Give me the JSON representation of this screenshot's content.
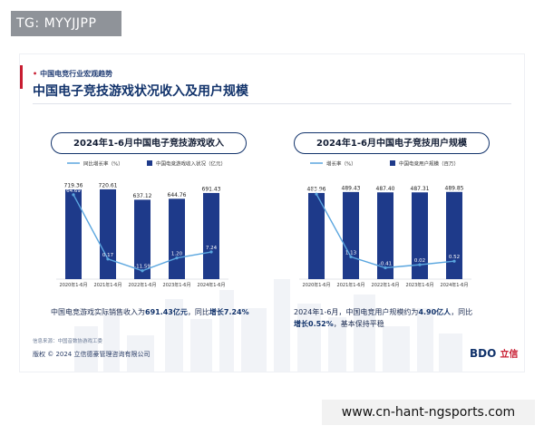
{
  "overlay_tag": "TG: MYYJJPP",
  "watermark_url": "www.cn-hant-ngsports.com",
  "slide": {
    "kicker": "中国电竞行业宏观趋势",
    "title": "中国电子竞技游戏状况收入及用户规模",
    "source": "信息来源：中国音数协游戏工委",
    "copyright": "版权 © 2024 立信德豪管理咨询有限公司",
    "logo_latin": "BDO",
    "logo_cn": "立信"
  },
  "captions": {
    "left_prefix": "中国电竞游戏实际销售收入为",
    "left_value": "691.43亿元",
    "left_mid": "，同比",
    "left_growth": "增长7.24%",
    "right_line1_prefix": "2024年1-6月，中国电竞用户规模约为",
    "right_line1_value": "4.90亿人",
    "right_line1_suffix": "，同比",
    "right_line2_bold": "增长0.52%",
    "right_line2_suffix": "，基本保持平稳"
  },
  "colors": {
    "bar": "#1e3a8a",
    "line": "#5aa6df",
    "accent": "#c81d31"
  },
  "chart_data": [
    {
      "type": "bar",
      "title": "2024年1-6月中国电子竞技游戏收入",
      "categories": [
        "2020年1-6月",
        "2021年1-6月",
        "2022年1-6月",
        "2023年1-6月",
        "2024年1-6月"
      ],
      "series": [
        {
          "name": "中国电竞游戏收入状况（亿元）",
          "kind": "bar",
          "values": [
            719.36,
            720.61,
            637.12,
            644.76,
            691.43
          ]
        },
        {
          "name": "同比增长率（%）",
          "kind": "line",
          "values": [
            64.69,
            0.17,
            -11.59,
            1.2,
            7.24
          ]
        }
      ],
      "bar_labels": [
        "719.36",
        "720.61",
        "637.12",
        "644.76",
        "691.43"
      ],
      "line_labels": [
        "64.69",
        "0.17",
        "-11.59",
        "1.20",
        "7.24"
      ],
      "bar_ylim": [
        0,
        800
      ],
      "line_ylim": [
        -20,
        80
      ],
      "legend": "top"
    },
    {
      "type": "bar",
      "title": "2024年1-6月中国电子竞技用户规模",
      "categories": [
        "2020年1-6月",
        "2021年1-6月",
        "2022年1-6月",
        "2023年1-6月",
        "2024年1-6月"
      ],
      "series": [
        {
          "name": "中国电竞用户规模（百万）",
          "kind": "bar",
          "values": [
            483.96,
            489.43,
            487.4,
            487.31,
            489.85
          ]
        },
        {
          "name": "增长率（%）",
          "kind": "line",
          "values": [
            9.94,
            1.13,
            -0.41,
            0.02,
            0.52
          ]
        }
      ],
      "bar_labels": [
        "483.96",
        "489.43",
        "487.40",
        "487.31",
        "489.85"
      ],
      "line_labels": [
        "9.94",
        "1.13",
        "-0.41",
        "0.02",
        "0.52"
      ],
      "bar_ylim": [
        0,
        560
      ],
      "line_ylim": [
        -2,
        12
      ],
      "legend": "top"
    }
  ]
}
